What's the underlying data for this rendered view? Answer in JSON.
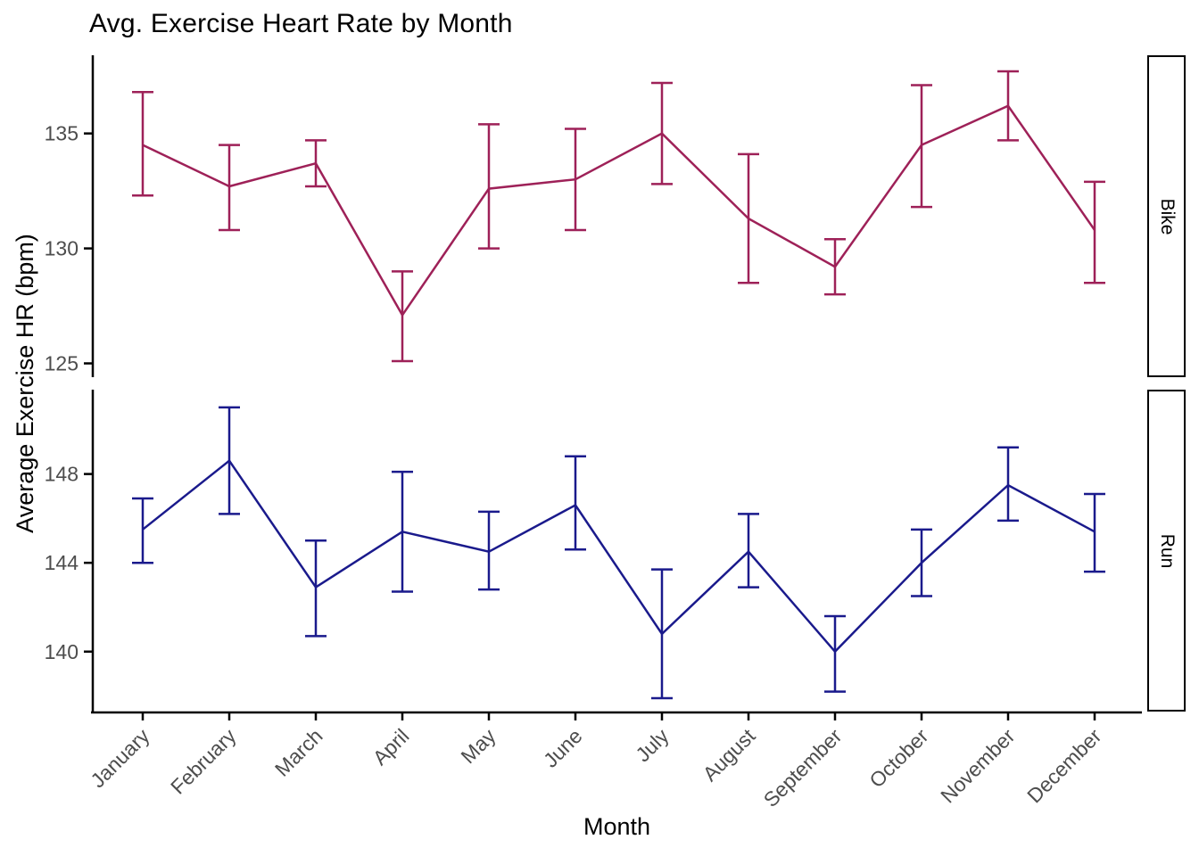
{
  "chart_data": {
    "type": "line",
    "title": "Avg. Exercise Heart Rate by Month",
    "xlabel": "Month",
    "ylabel": "Average Exercise HR (bpm)",
    "legend_position": "none",
    "grid": "off",
    "error_bars": true,
    "facet_strip_position": "right",
    "categories": [
      "January",
      "February",
      "March",
      "April",
      "May",
      "June",
      "July",
      "August",
      "September",
      "October",
      "November",
      "December"
    ],
    "facets": [
      {
        "name": "Bike",
        "color": "#9E2158",
        "ylim": [
          124.4,
          138.4
        ],
        "yticks": [
          125,
          130,
          135
        ],
        "values": [
          134.5,
          132.7,
          133.7,
          127.1,
          132.6,
          133.0,
          135.0,
          131.3,
          129.2,
          134.5,
          136.2,
          130.8
        ],
        "err_low": [
          132.3,
          130.8,
          132.7,
          125.1,
          130.0,
          130.8,
          132.8,
          128.5,
          128.0,
          131.8,
          134.7,
          128.5
        ],
        "err_high": [
          136.8,
          134.5,
          134.7,
          129.0,
          135.4,
          135.2,
          137.2,
          134.1,
          130.4,
          137.1,
          137.7,
          132.9
        ]
      },
      {
        "name": "Run",
        "color": "#1A1A8C",
        "ylim": [
          137.3,
          151.8
        ],
        "yticks": [
          140,
          144,
          148
        ],
        "values": [
          145.5,
          148.6,
          142.9,
          145.4,
          144.5,
          146.6,
          140.8,
          144.5,
          140.0,
          144.0,
          147.5,
          145.4
        ],
        "err_low": [
          144.0,
          146.2,
          140.7,
          142.7,
          142.8,
          144.6,
          137.9,
          142.9,
          138.2,
          142.5,
          145.9,
          143.6
        ],
        "err_high": [
          146.9,
          151.0,
          145.0,
          148.1,
          146.3,
          148.8,
          143.7,
          146.2,
          141.6,
          145.5,
          149.2,
          147.1
        ]
      }
    ],
    "axis_colors": {
      "line": "#000000",
      "tick_label": "#4D4D4D"
    }
  }
}
